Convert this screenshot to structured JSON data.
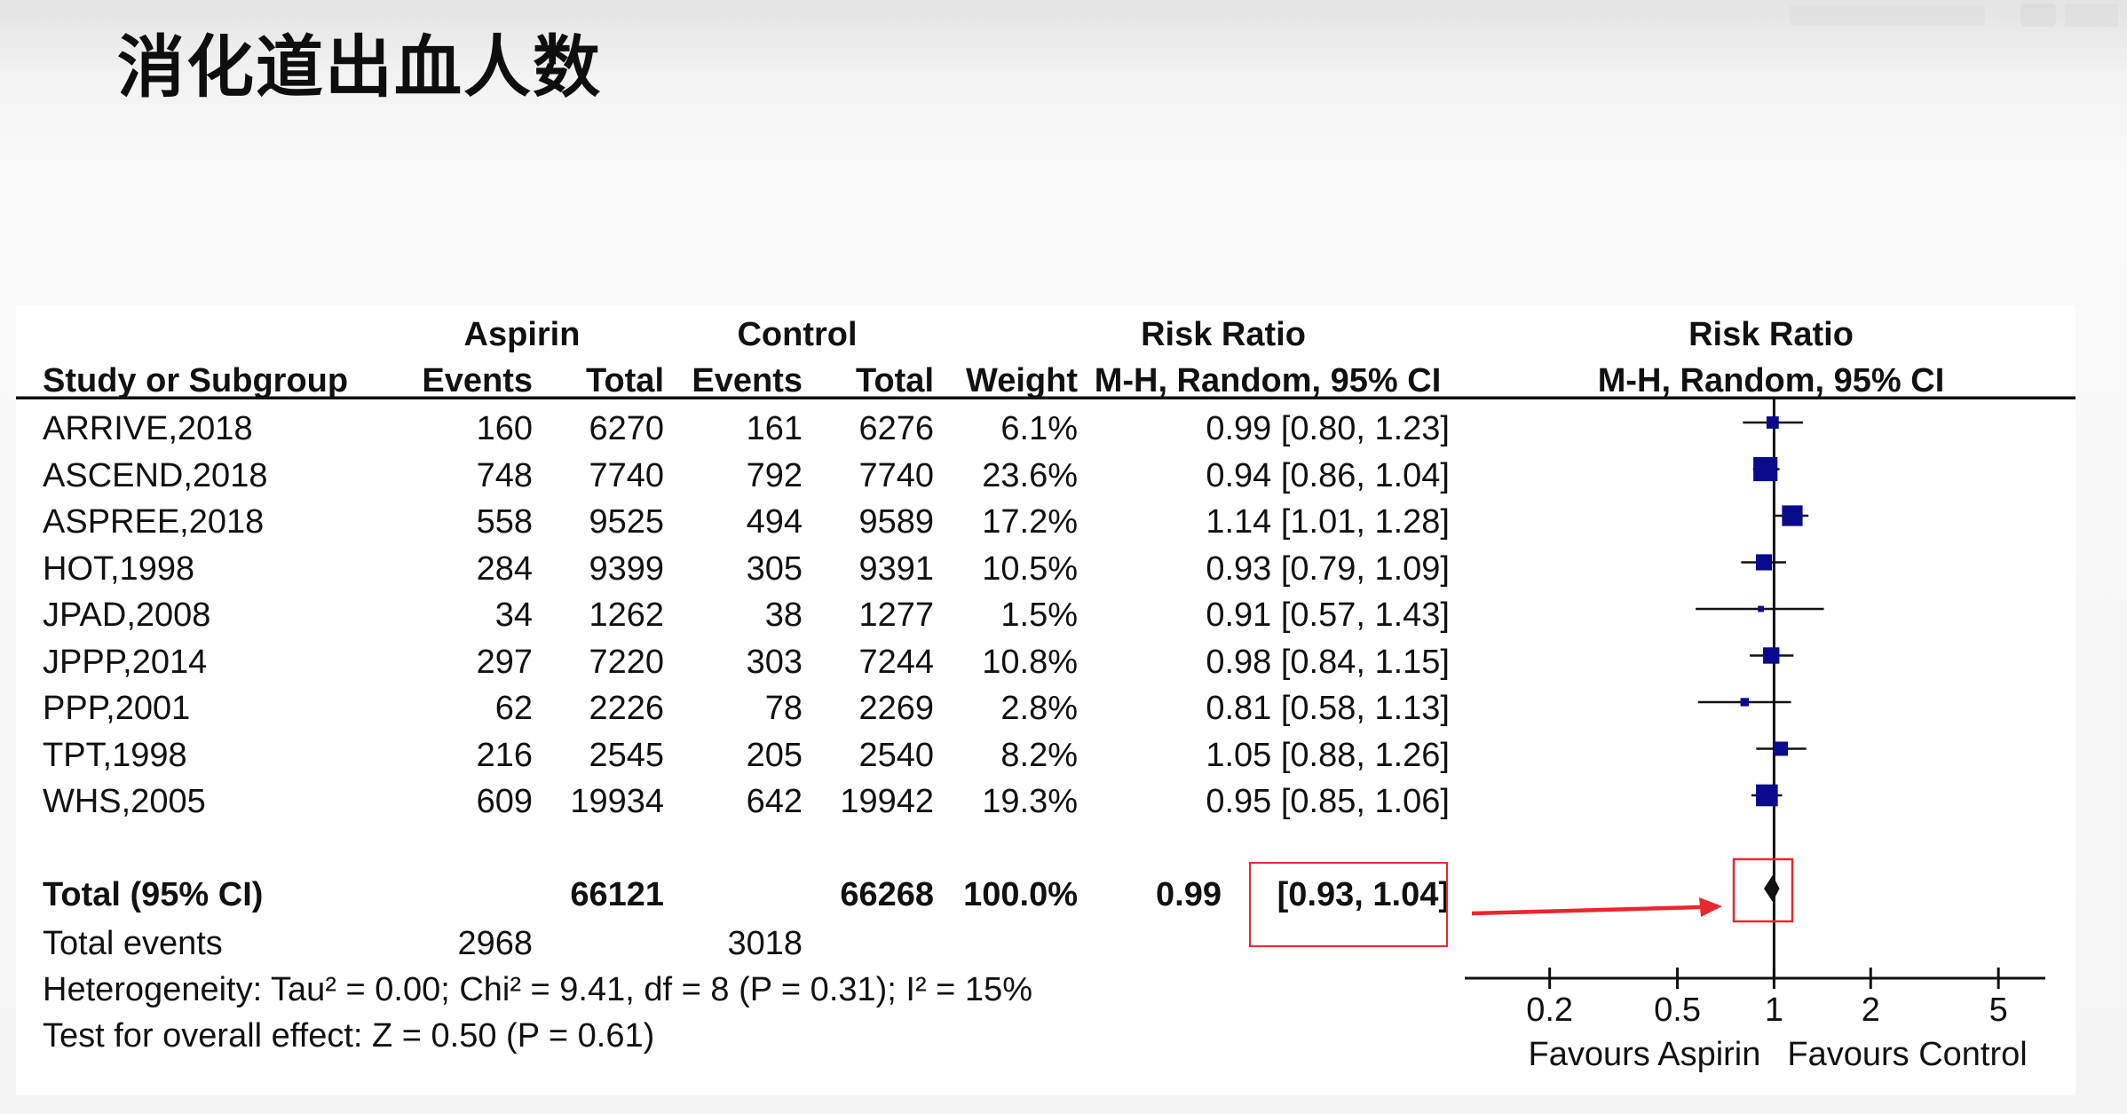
{
  "slide_title": "消化道出血人数",
  "chart_data": {
    "type": "forest",
    "scale": "log",
    "xlim": [
      0.13,
      7.0
    ],
    "null_value": 1,
    "headers": {
      "group_aspirin": "Aspirin",
      "group_control": "Control",
      "study": "Study or Subgroup",
      "events": "Events",
      "total": "Total",
      "weight": "Weight",
      "rr_title": "Risk Ratio",
      "rr_method": "M-H, Random, 95% CI",
      "plot_title": "Risk Ratio",
      "plot_method": "M-H, Random, 95% CI"
    },
    "studies": [
      {
        "name": "ARRIVE,2018",
        "a_events": "160",
        "a_total": "6270",
        "c_events": "161",
        "c_total": "6276",
        "weight": "6.1%",
        "ci_text": "0.99 [0.80, 1.23]",
        "rr": 0.99,
        "lo": 0.8,
        "hi": 1.23,
        "w": 6.1
      },
      {
        "name": "ASCEND,2018",
        "a_events": "748",
        "a_total": "7740",
        "c_events": "792",
        "c_total": "7740",
        "weight": "23.6%",
        "ci_text": "0.94 [0.86, 1.04]",
        "rr": 0.94,
        "lo": 0.86,
        "hi": 1.04,
        "w": 23.6
      },
      {
        "name": "ASPREE,2018",
        "a_events": "558",
        "a_total": "9525",
        "c_events": "494",
        "c_total": "9589",
        "weight": "17.2%",
        "ci_text": "1.14 [1.01, 1.28]",
        "rr": 1.14,
        "lo": 1.01,
        "hi": 1.28,
        "w": 17.2
      },
      {
        "name": "HOT,1998",
        "a_events": "284",
        "a_total": "9399",
        "c_events": "305",
        "c_total": "9391",
        "weight": "10.5%",
        "ci_text": "0.93 [0.79, 1.09]",
        "rr": 0.93,
        "lo": 0.79,
        "hi": 1.09,
        "w": 10.5
      },
      {
        "name": "JPAD,2008",
        "a_events": "34",
        "a_total": "1262",
        "c_events": "38",
        "c_total": "1277",
        "weight": "1.5%",
        "ci_text": "0.91 [0.57, 1.43]",
        "rr": 0.91,
        "lo": 0.57,
        "hi": 1.43,
        "w": 1.5
      },
      {
        "name": "JPPP,2014",
        "a_events": "297",
        "a_total": "7220",
        "c_events": "303",
        "c_total": "7244",
        "weight": "10.8%",
        "ci_text": "0.98 [0.84, 1.15]",
        "rr": 0.98,
        "lo": 0.84,
        "hi": 1.15,
        "w": 10.8
      },
      {
        "name": "PPP,2001",
        "a_events": "62",
        "a_total": "2226",
        "c_events": "78",
        "c_total": "2269",
        "weight": "2.8%",
        "ci_text": "0.81 [0.58, 1.13]",
        "rr": 0.81,
        "lo": 0.58,
        "hi": 1.13,
        "w": 2.8
      },
      {
        "name": "TPT,1998",
        "a_events": "216",
        "a_total": "2545",
        "c_events": "205",
        "c_total": "2540",
        "weight": "8.2%",
        "ci_text": "1.05 [0.88, 1.26]",
        "rr": 1.05,
        "lo": 0.88,
        "hi": 1.26,
        "w": 8.2
      },
      {
        "name": "WHS,2005",
        "a_events": "609",
        "a_total": "19934",
        "c_events": "642",
        "c_total": "19942",
        "weight": "19.3%",
        "ci_text": "0.95 [0.85, 1.06]",
        "rr": 0.95,
        "lo": 0.85,
        "hi": 1.06,
        "w": 19.3
      }
    ],
    "total": {
      "label": "Total (95% CI)",
      "a_total": "66121",
      "c_total": "66268",
      "weight": "100.0%",
      "rr_text": "0.99",
      "ci_bracket": "[0.93, 1.04]",
      "rr": 0.99,
      "lo": 0.93,
      "hi": 1.04
    },
    "total_events": {
      "label": "Total events",
      "aspirin": "2968",
      "control": "3018"
    },
    "heterogeneity": "Heterogeneity: Tau² = 0.00; Chi² = 9.41, df = 8 (P = 0.31); I² = 15%",
    "overall_effect": "Test for overall effect: Z = 0.50 (P = 0.61)",
    "x_ticks": [
      0.2,
      0.5,
      1,
      2,
      5
    ],
    "x_tick_labels": [
      "0.2",
      "0.5",
      "1",
      "2",
      "5"
    ],
    "favours_left": "Favours Aspirin",
    "favours_right": "Favours Control",
    "colors": {
      "marker": "#0a0a8c",
      "line": "#111111",
      "highlight": "#e8282d"
    }
  }
}
